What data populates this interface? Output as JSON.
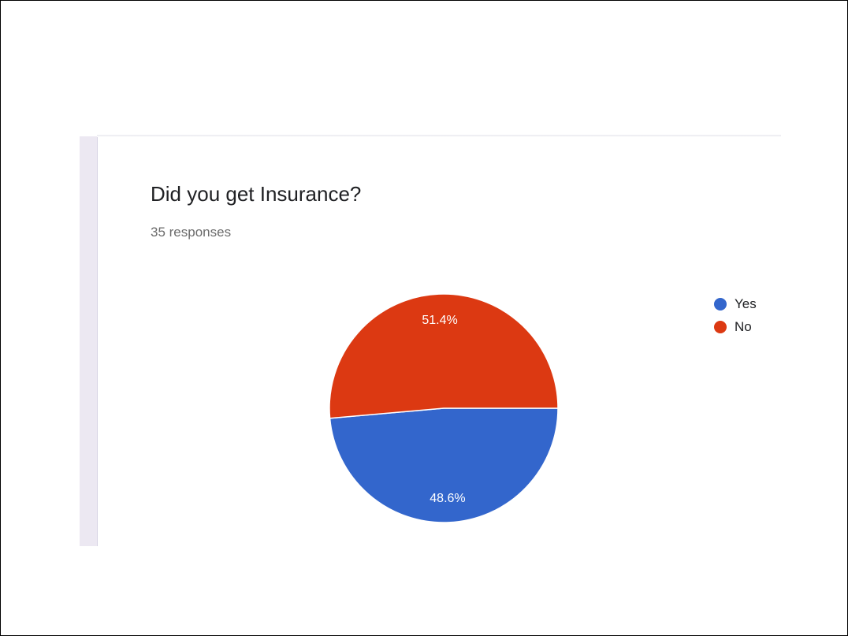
{
  "chart_data": {
    "type": "pie",
    "title": "Did you get Insurance?",
    "subtitle": "35 responses",
    "categories": [
      "Yes",
      "No"
    ],
    "values": [
      48.6,
      51.4
    ],
    "data_labels": [
      "48.6%",
      "51.4%"
    ],
    "colors": [
      "#3366cc",
      "#dc3912"
    ],
    "legend_position": "right"
  }
}
